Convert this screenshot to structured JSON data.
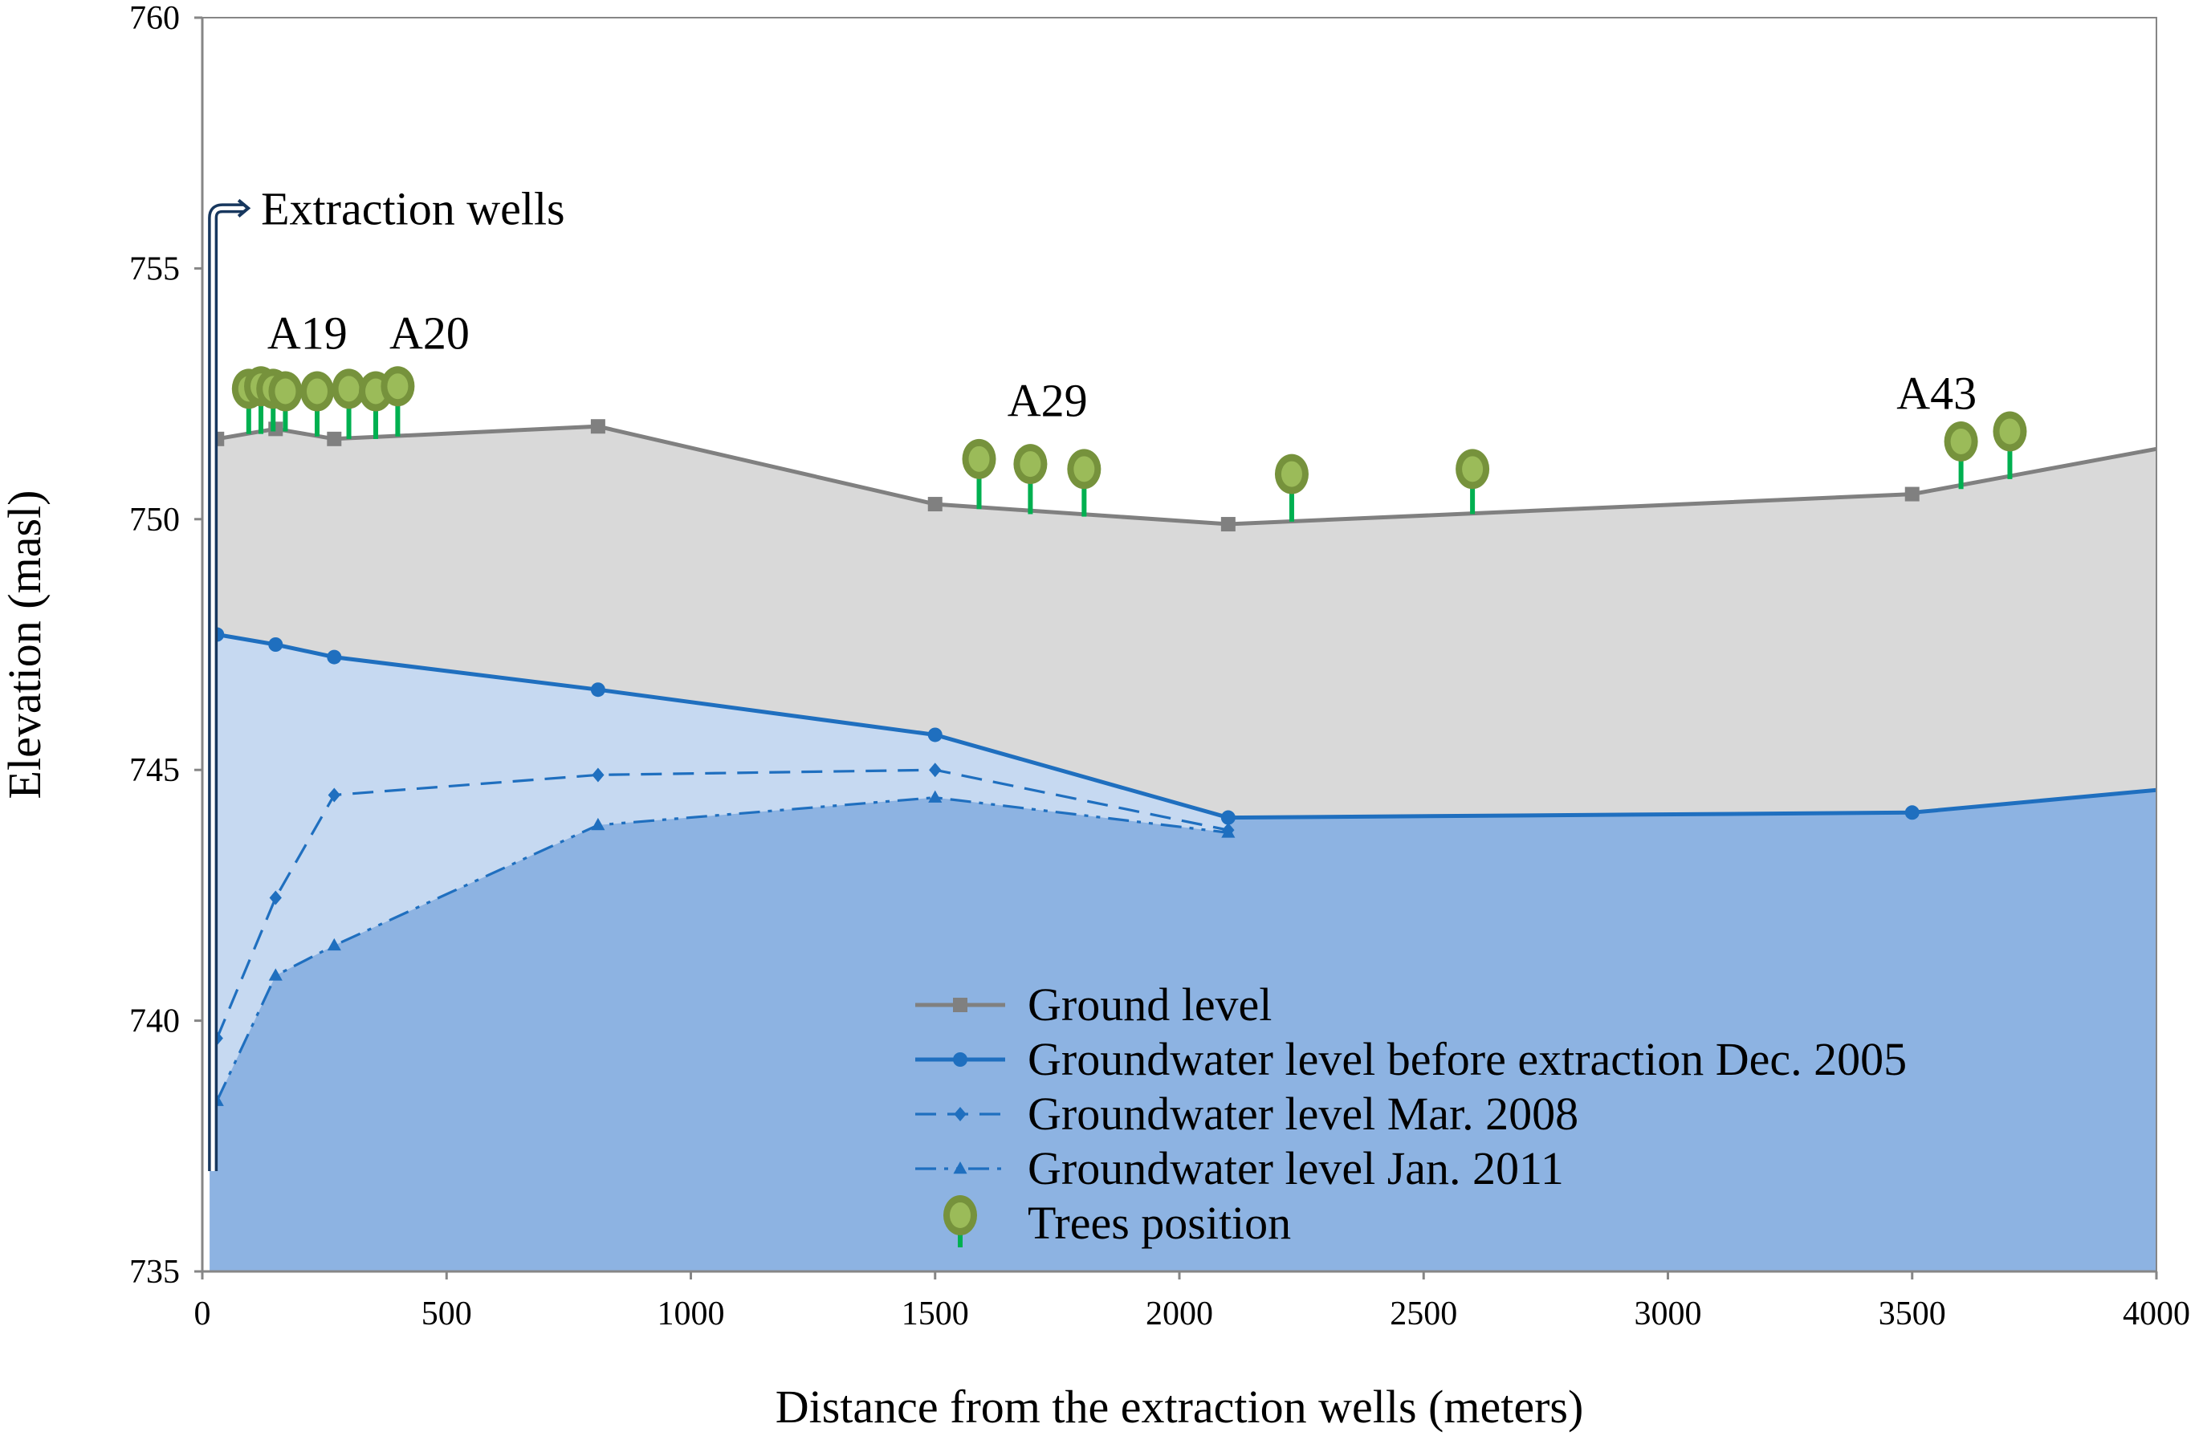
{
  "chart_data": {
    "type": "line",
    "xlabel": "Distance from the extraction wells (meters)",
    "ylabel": "Elevation (masl)",
    "xlim": [
      0,
      4000
    ],
    "ylim": [
      735,
      760
    ],
    "x_ticks": [
      "0",
      "500",
      "1000",
      "1500",
      "2000",
      "2500",
      "3000",
      "3500",
      "4000"
    ],
    "y_ticks": [
      "735",
      "740",
      "745",
      "750",
      "755",
      "760"
    ],
    "grid": false,
    "series": [
      {
        "name": "Ground level",
        "color": "#808080",
        "style": "solid",
        "marker": "square",
        "points": [
          [
            30,
            751.6
          ],
          [
            150,
            751.8
          ],
          [
            270,
            751.6
          ],
          [
            810,
            751.85
          ],
          [
            1500,
            750.3
          ],
          [
            2100,
            749.9
          ],
          [
            3500,
            750.5
          ]
        ],
        "line_points": [
          [
            30,
            751.6
          ],
          [
            150,
            751.8
          ],
          [
            270,
            751.6
          ],
          [
            810,
            751.85
          ],
          [
            1500,
            750.3
          ],
          [
            2100,
            749.9
          ],
          [
            3500,
            750.5
          ],
          [
            4000,
            751.4
          ]
        ]
      },
      {
        "name": "Groundwater level before extraction Dec. 2005",
        "color": "#1f6fbf",
        "style": "solid",
        "marker": "circle",
        "points": [
          [
            30,
            747.7
          ],
          [
            150,
            747.5
          ],
          [
            270,
            747.25
          ],
          [
            810,
            746.6
          ],
          [
            1500,
            745.7
          ],
          [
            2100,
            744.05
          ],
          [
            3500,
            744.15
          ]
        ],
        "line_points": [
          [
            30,
            747.7
          ],
          [
            150,
            747.5
          ],
          [
            270,
            747.25
          ],
          [
            810,
            746.6
          ],
          [
            1500,
            745.7
          ],
          [
            2100,
            744.05
          ],
          [
            3500,
            744.15
          ],
          [
            4000,
            744.6
          ]
        ]
      },
      {
        "name": "Groundwater level Mar. 2008",
        "color": "#1f6fbf",
        "style": "dashed",
        "marker": "diamond",
        "points": [
          [
            30,
            739.65
          ],
          [
            150,
            742.45
          ],
          [
            270,
            744.5
          ],
          [
            810,
            744.9
          ],
          [
            1500,
            745.0
          ],
          [
            2100,
            743.8
          ]
        ],
        "line_points": [
          [
            30,
            739.65
          ],
          [
            150,
            742.45
          ],
          [
            270,
            744.5
          ],
          [
            810,
            744.9
          ],
          [
            1500,
            745.0
          ],
          [
            2100,
            743.8
          ]
        ]
      },
      {
        "name": "Groundwater level Jan. 2011",
        "color": "#1f6fbf",
        "style": "dash-dot-dot",
        "marker": "triangle",
        "points": [
          [
            30,
            738.4
          ],
          [
            150,
            740.9
          ],
          [
            270,
            741.5
          ],
          [
            810,
            743.9
          ],
          [
            1500,
            744.45
          ],
          [
            2100,
            743.75
          ]
        ],
        "line_points": [
          [
            30,
            738.4
          ],
          [
            150,
            740.9
          ],
          [
            270,
            741.5
          ],
          [
            810,
            743.9
          ],
          [
            1500,
            744.45
          ],
          [
            2100,
            743.75
          ]
        ]
      }
    ],
    "trees": [
      {
        "x": 95,
        "ground": 751.7,
        "top": 752.6
      },
      {
        "x": 120,
        "ground": 751.7,
        "top": 752.65
      },
      {
        "x": 145,
        "ground": 751.75,
        "top": 752.6
      },
      {
        "x": 170,
        "ground": 751.75,
        "top": 752.55
      },
      {
        "x": 235,
        "ground": 751.65,
        "top": 752.55
      },
      {
        "x": 300,
        "ground": 751.6,
        "top": 752.6
      },
      {
        "x": 355,
        "ground": 751.6,
        "top": 752.55
      },
      {
        "x": 400,
        "ground": 751.65,
        "top": 752.65
      },
      {
        "x": 1590,
        "ground": 750.2,
        "top": 751.2
      },
      {
        "x": 1695,
        "ground": 750.1,
        "top": 751.1
      },
      {
        "x": 1805,
        "ground": 750.05,
        "top": 751.0
      },
      {
        "x": 2230,
        "ground": 749.95,
        "top": 750.9
      },
      {
        "x": 2600,
        "ground": 750.1,
        "top": 751.0
      },
      {
        "x": 3600,
        "ground": 750.6,
        "top": 751.55
      },
      {
        "x": 3700,
        "ground": 750.8,
        "top": 751.75
      }
    ],
    "tree_labels": [
      {
        "text": "A19",
        "x": 215,
        "y": 753.4
      },
      {
        "text": "A20",
        "x": 465,
        "y": 753.4
      },
      {
        "text": "A29",
        "x": 1730,
        "y": 752.05
      },
      {
        "text": "A43",
        "x": 3550,
        "y": 752.2
      }
    ],
    "annotation": {
      "text": "Extraction wells",
      "well_x": 15,
      "top_y": 756.2,
      "bottom_y": 737.0
    },
    "legend": {
      "position": "bottom-center",
      "entries": [
        {
          "label": "Ground level",
          "series": 0
        },
        {
          "label": "Groundwater level before extraction Dec. 2005",
          "series": 1
        },
        {
          "label": "Groundwater level Mar. 2008",
          "series": 2
        },
        {
          "label": "Groundwater level Jan. 2011",
          "series": 3
        },
        {
          "label": "Trees position",
          "series": "trees"
        }
      ]
    },
    "colors": {
      "ground_fill": "#d9d9d9",
      "drawdown_fill": "#c6d9f1",
      "aquifer_fill": "#8db3e2",
      "ground_line": "#808080",
      "water_line": "#1f6fbf",
      "tree_crown": "#9bbb59",
      "tree_outline": "#76923c",
      "tree_trunk": "#00b050",
      "well": "#17375e"
    }
  }
}
